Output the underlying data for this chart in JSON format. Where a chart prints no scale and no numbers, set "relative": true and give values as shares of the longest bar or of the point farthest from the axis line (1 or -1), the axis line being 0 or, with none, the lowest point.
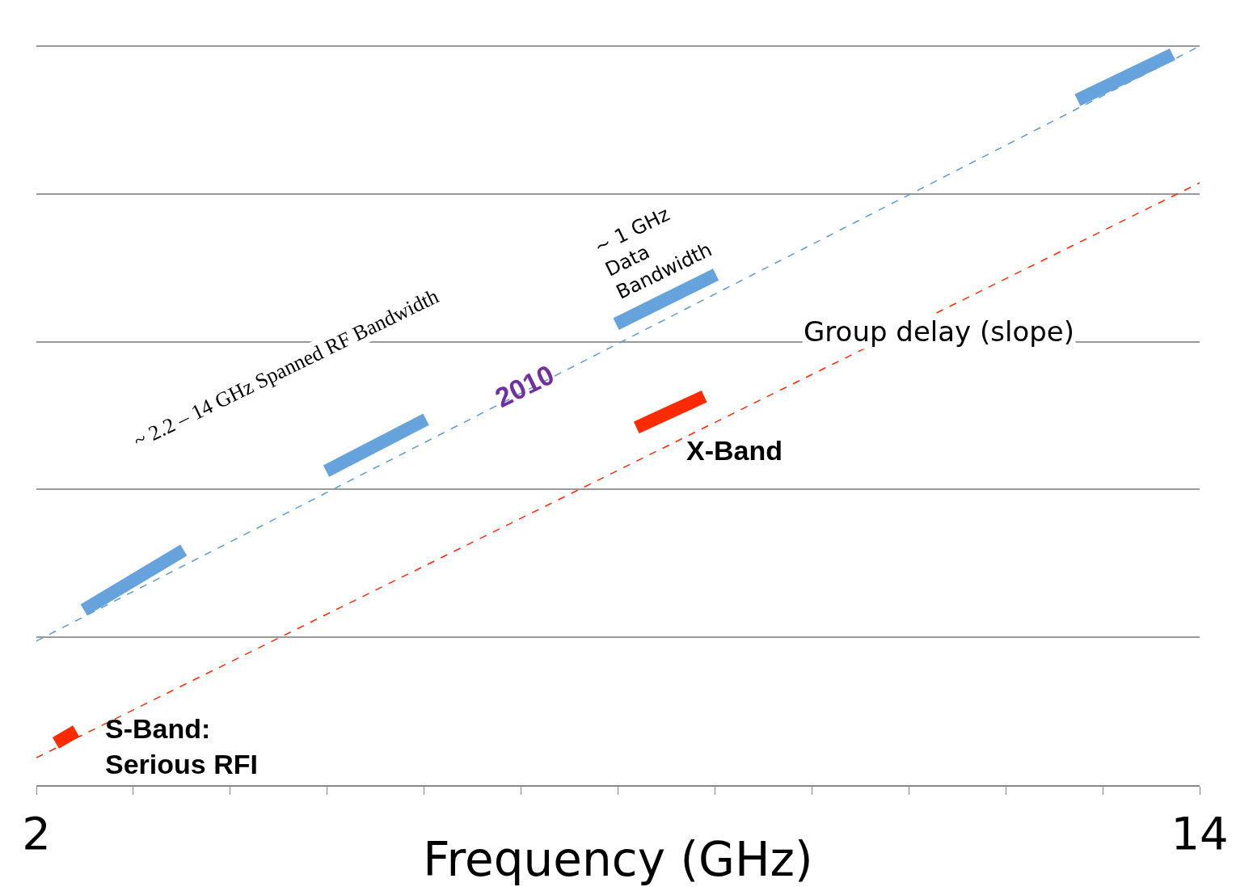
{
  "chart_data": {
    "type": "line",
    "relative": true,
    "xlabel": "Frequency (GHz)",
    "xlim": [
      2,
      14
    ],
    "xticks": [
      2,
      {
        "value": 3,
        "label": null
      },
      {
        "value": 4,
        "label": null
      },
      {
        "value": 5,
        "label": null
      },
      {
        "value": 6,
        "label": null
      },
      {
        "value": 7,
        "label": null
      },
      {
        "value": 8,
        "label": null
      },
      {
        "value": 9,
        "label": null
      },
      {
        "value": 10,
        "label": null
      },
      {
        "value": 11,
        "label": null
      },
      {
        "value": 12,
        "label": null
      },
      {
        "value": 13,
        "label": null
      },
      14
    ],
    "grid": "y",
    "series": [
      {
        "color": "#5b9bd5",
        "line_style": "dashed",
        "x": [
          2,
          14
        ],
        "values": [
          0.195,
          1
        ]
      },
      {
        "color": "#ff2a00",
        "line_style": "dashed",
        "x": [
          2,
          14
        ],
        "values": [
          0.037,
          0.815
        ]
      },
      {
        "color": "#66a3dd",
        "line_style": "solid",
        "x": [
          2.49,
          3.52
        ],
        "values": [
          0.237,
          0.318
        ]
      },
      {
        "color": "#66a3dd",
        "line_style": "solid",
        "x": [
          4.99,
          6.02
        ],
        "values": [
          0.425,
          0.495
        ]
      },
      {
        "color": "#66a3dd",
        "line_style": "solid",
        "x": [
          7.98,
          9.01
        ],
        "values": [
          0.624,
          0.691
        ]
      },
      {
        "color": "#66a3dd",
        "line_style": "solid",
        "x": [
          12.74,
          13.72
        ],
        "values": [
          0.927,
          0.989
        ]
      },
      {
        "color": "#ff2a00",
        "line_style": "solid",
        "x": [
          2.2,
          2.41
        ],
        "values": [
          0.057,
          0.073
        ]
      },
      {
        "color": "#ff2a00",
        "line_style": "solid",
        "x": [
          8.19,
          8.89
        ],
        "values": [
          0.484,
          0.526
        ]
      }
    ],
    "annotations": [
      "~ 2.2 – 14 GHz Spanned RF Bandwidth",
      "~ 1 GHz Data Bandwidth",
      "Group delay (slope)",
      "2010",
      "X-Band",
      "S-Band: Serious RFI"
    ]
  }
}
